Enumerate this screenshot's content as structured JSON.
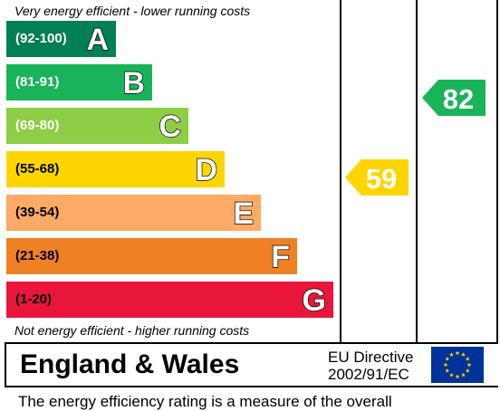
{
  "chart_data": {
    "type": "bar",
    "top_note": "Very energy efficient - lower running costs",
    "bottom_note": "Not energy efficient - higher running costs",
    "bands": [
      {
        "letter": "A",
        "range": "(92-100)",
        "min": 92,
        "max": 100,
        "color": "#008054"
      },
      {
        "letter": "B",
        "range": "(81-91)",
        "min": 81,
        "max": 91,
        "color": "#19b459"
      },
      {
        "letter": "C",
        "range": "(69-80)",
        "min": 69,
        "max": 80,
        "color": "#8dce46"
      },
      {
        "letter": "D",
        "range": "(55-68)",
        "min": 55,
        "max": 68,
        "color": "#ffd500"
      },
      {
        "letter": "E",
        "range": "(39-54)",
        "min": 39,
        "max": 54,
        "color": "#fcaa65"
      },
      {
        "letter": "F",
        "range": "(21-38)",
        "min": 21,
        "max": 38,
        "color": "#ef8023"
      },
      {
        "letter": "G",
        "range": "(1-20)",
        "min": 1,
        "max": 20,
        "color": "#e9153b"
      }
    ],
    "current": {
      "value": 59,
      "label": "59",
      "band": "D",
      "color": "#ffd500"
    },
    "potential": {
      "value": 82,
      "label": "82",
      "band": "B",
      "color": "#19b459"
    }
  },
  "footer_panel": {
    "region": "England & Wales",
    "directive_line1": "EU Directive",
    "directive_line2": "2002/91/EC",
    "flag_colors": {
      "background": "#003399",
      "stars": "#ffcc00"
    }
  },
  "footer_text": "The energy efficiency rating is a measure of the overall"
}
